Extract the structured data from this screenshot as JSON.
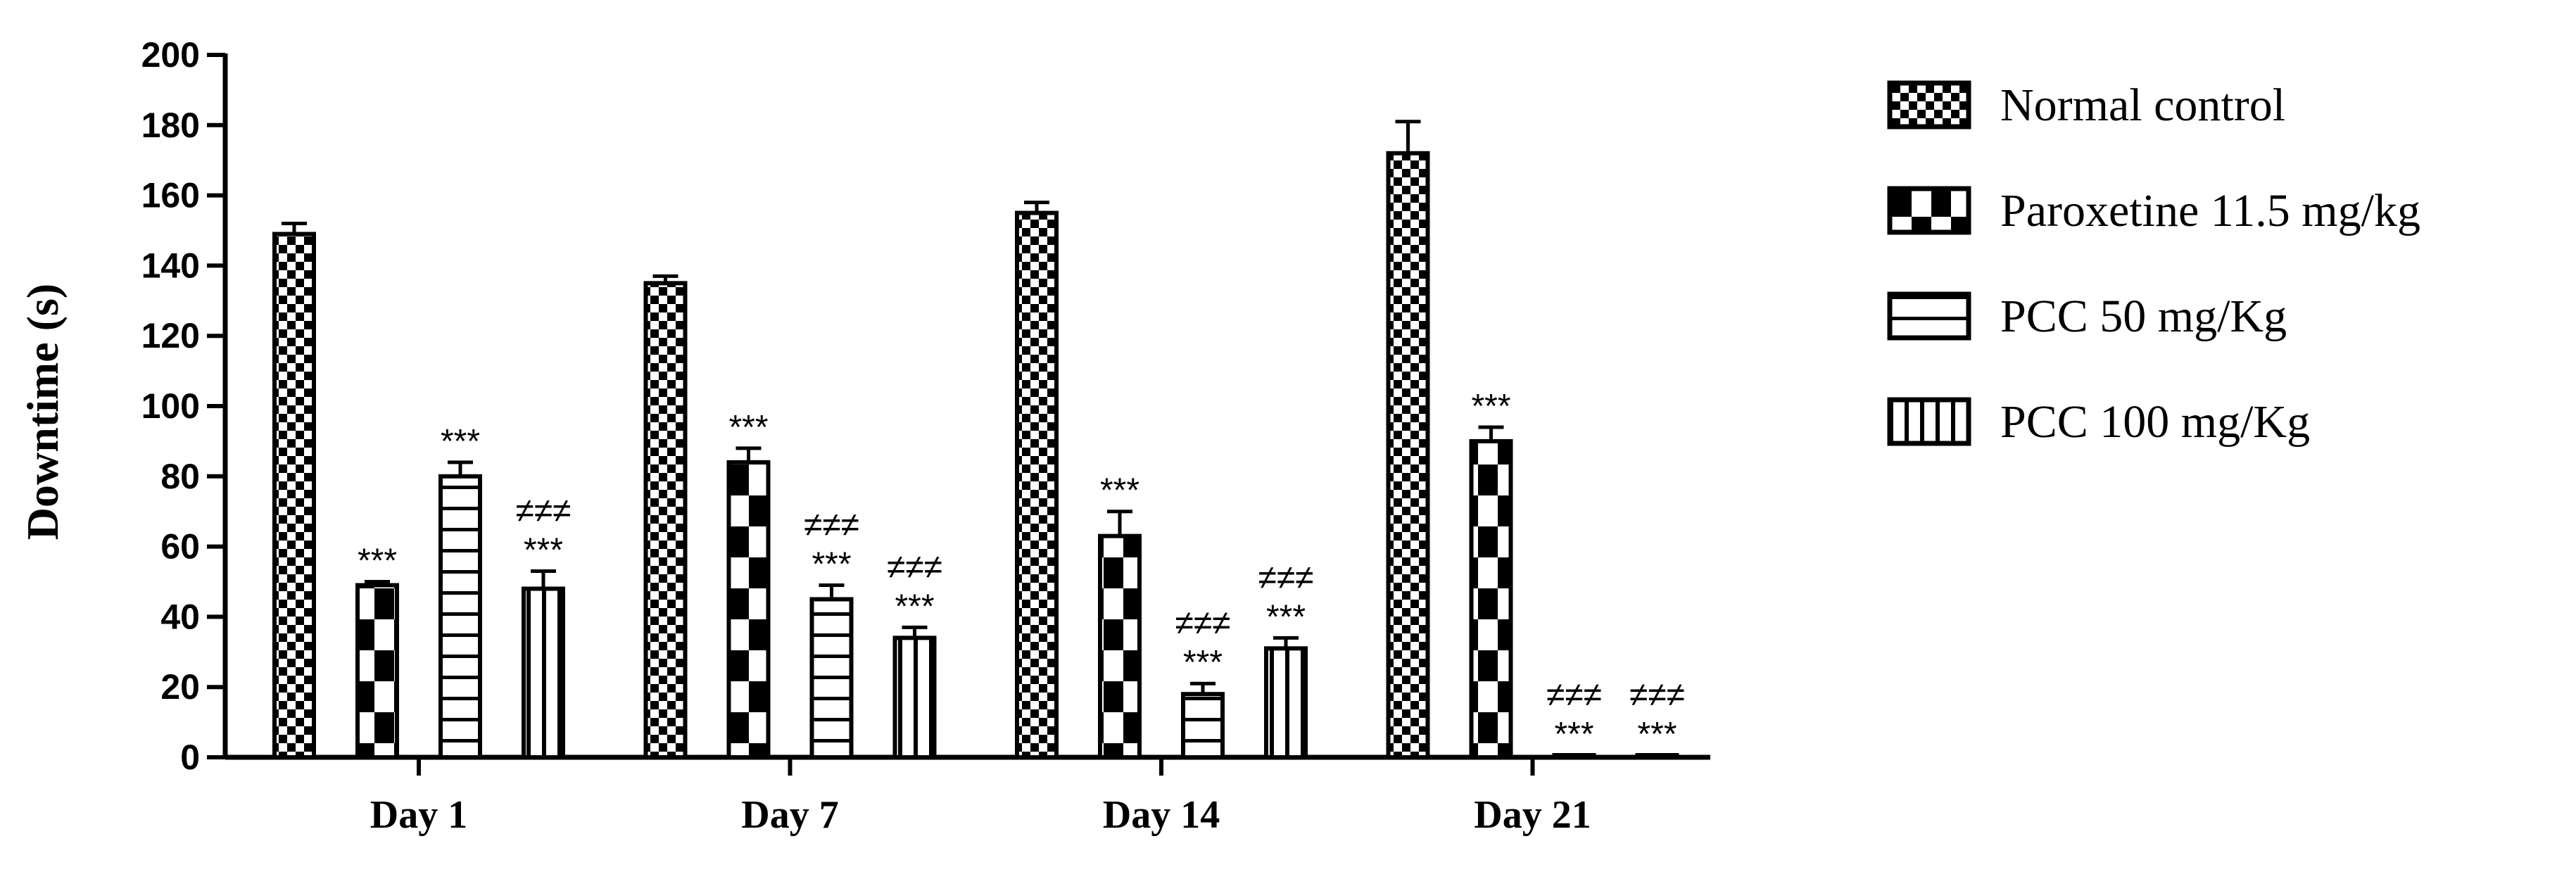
{
  "chart_data": {
    "type": "bar",
    "categories": [
      "Day 1",
      "Day 7",
      "Day 14",
      "Day 21"
    ],
    "ylabel": "Downtime (s)",
    "xlabel": "",
    "ylim": [
      0,
      200
    ],
    "yticks": [
      0,
      20,
      40,
      60,
      80,
      100,
      120,
      140,
      160,
      180,
      200
    ],
    "legend_position": "right",
    "series": [
      {
        "name": "Normal control",
        "pattern": "checker-fine",
        "values": [
          149,
          135,
          155,
          172
        ],
        "errors": [
          3,
          2,
          3,
          9
        ],
        "annotations": [
          "",
          "",
          "",
          ""
        ]
      },
      {
        "name": "Paroxetine 11.5 mg/kg",
        "pattern": "checker-coarse",
        "values": [
          49,
          84,
          63,
          90
        ],
        "errors": [
          1,
          4,
          7,
          4
        ],
        "annotations": [
          "***",
          "***",
          "***",
          "***"
        ]
      },
      {
        "name": "PCC 50 mg/Kg",
        "pattern": "horizontal-stripes",
        "values": [
          80,
          45,
          18,
          0.5
        ],
        "errors": [
          4,
          4,
          3,
          0
        ],
        "annotations": [
          "***",
          "≠≠≠\n***",
          "≠≠≠\n***",
          "≠≠≠\n***"
        ]
      },
      {
        "name": "PCC 100 mg/Kg",
        "pattern": "vertical-stripes",
        "values": [
          48,
          34,
          31,
          0.5
        ],
        "errors": [
          5,
          3,
          3,
          0
        ],
        "annotations": [
          "≠≠≠\n***",
          "≠≠≠\n***",
          "≠≠≠\n***",
          "≠≠≠\n***"
        ]
      }
    ]
  }
}
